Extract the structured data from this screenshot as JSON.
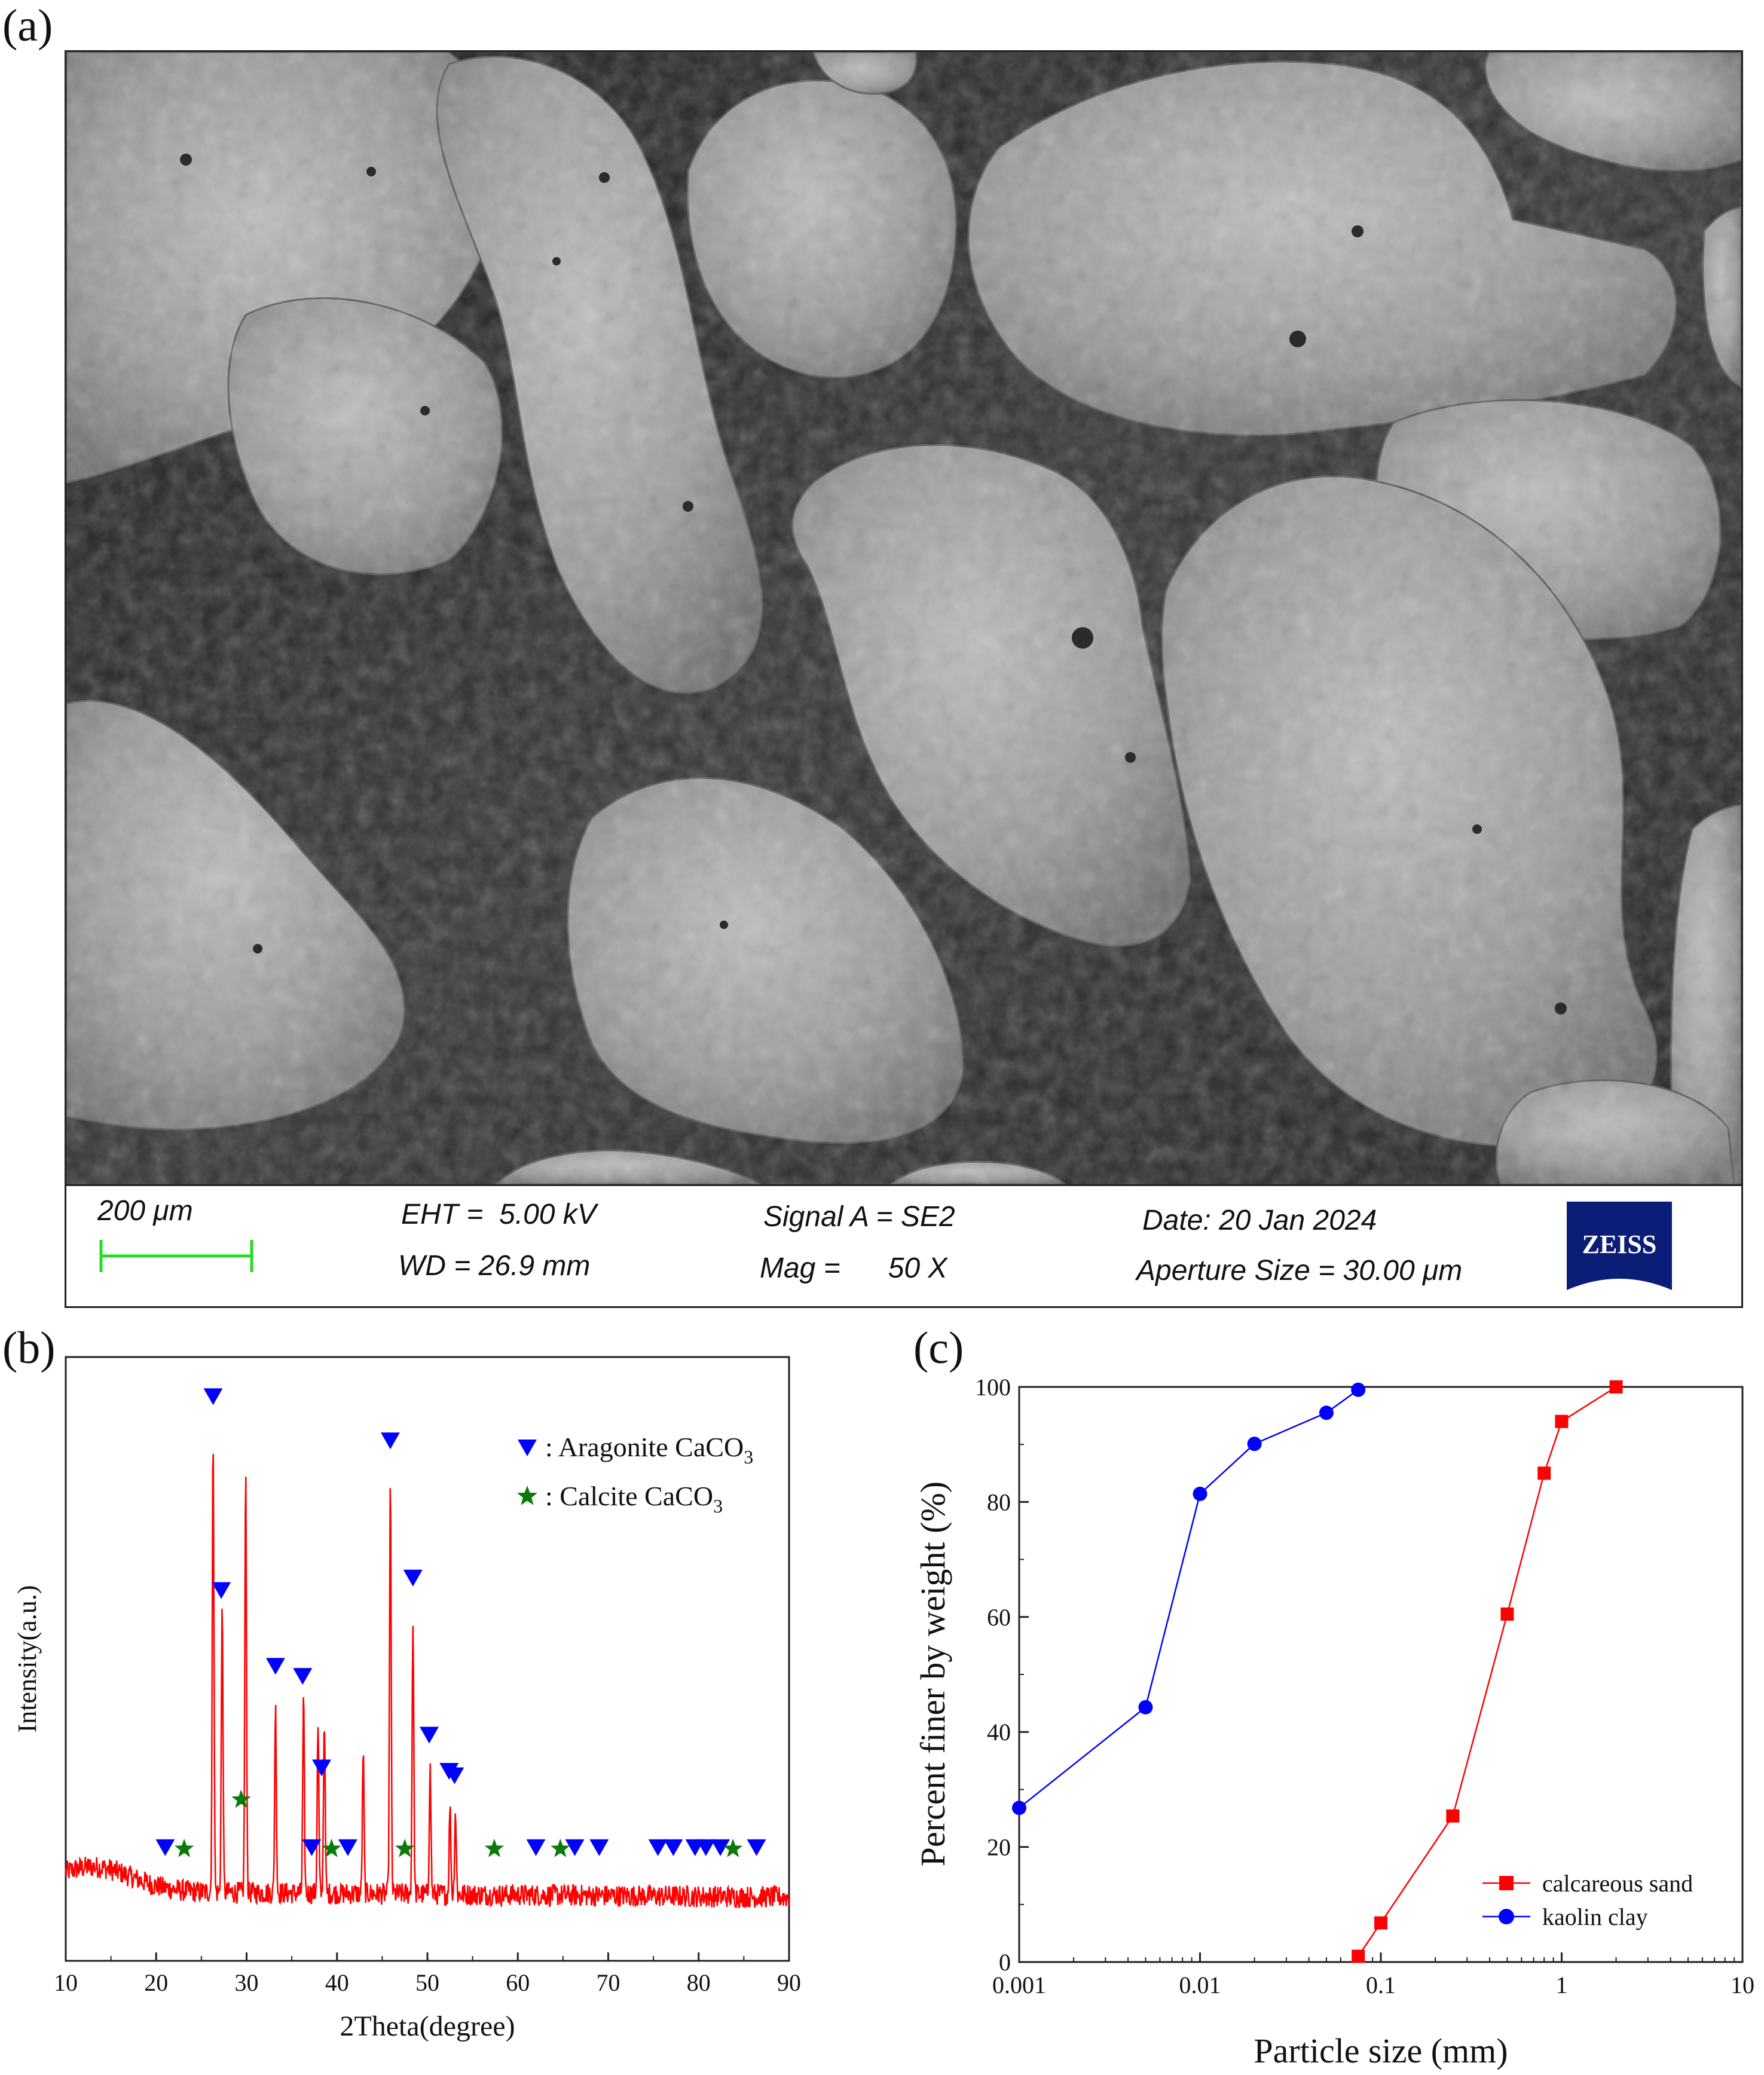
{
  "panels": {
    "a": "(a)",
    "b": "(b)",
    "c": "(c)"
  },
  "sem_info": {
    "scale_label": "200 μm",
    "eht": "EHT =  5.00 kV",
    "wd": "WD = 26.9 mm",
    "signal": "Signal A = SE2",
    "mag": "Mag =      50 X",
    "date": "Date: 20 Jan 2024",
    "aperture": "Aperture Size = 30.00 μm",
    "logo": "ZEISS"
  },
  "colors": {
    "xrd_line": "#ff0000",
    "aragonite": "#0000ff",
    "calcite": "#0a7a0a",
    "sand": "#ff0000",
    "clay": "#0000ff",
    "scale_bar": "#22dd22",
    "zeiss_blue": "#0a1e78"
  },
  "chart_data": [
    {
      "type": "line",
      "title": "",
      "xlabel": "2Theta(degree)",
      "ylabel": "Intensity(a.u.)",
      "xlim": [
        10,
        90
      ],
      "xticks": [
        10,
        20,
        30,
        40,
        50,
        60,
        70,
        80,
        90
      ],
      "legend": {
        "placement": "top-right",
        "entries": [
          {
            "marker": "triangle-down",
            "prefix": ": Aragonite CaCO",
            "sub": "3"
          },
          {
            "marker": "star",
            "prefix": ": Calcite CaCO",
            "sub": "3"
          }
        ]
      },
      "peaks": [
        {
          "x": 26.3,
          "h": 0.93
        },
        {
          "x": 27.3,
          "h": 0.58
        },
        {
          "x": 29.9,
          "h": 0.85
        },
        {
          "x": 33.2,
          "h": 0.38
        },
        {
          "x": 36.3,
          "h": 0.39
        },
        {
          "x": 37.9,
          "h": 0.34
        },
        {
          "x": 38.6,
          "h": 0.36
        },
        {
          "x": 42.9,
          "h": 0.29
        },
        {
          "x": 45.9,
          "h": 0.84
        },
        {
          "x": 48.4,
          "h": 0.56
        },
        {
          "x": 50.3,
          "h": 0.26
        },
        {
          "x": 52.5,
          "h": 0.18
        },
        {
          "x": 53.1,
          "h": 0.17
        }
      ],
      "aragonite_markers": [
        21.0,
        26.3,
        27.2,
        33.2,
        36.2,
        37.2,
        38.3,
        41.2,
        45.9,
        48.4,
        50.2,
        52.4,
        53.0,
        62.0,
        66.3,
        69.0,
        75.5,
        77.2,
        79.6,
        80.8,
        82.4,
        86.4
      ],
      "calcite_markers": [
        23.1,
        29.4,
        39.4,
        47.5,
        57.4,
        64.7,
        83.8
      ]
    },
    {
      "type": "line",
      "title": "",
      "xlabel": "Particle size (mm)",
      "ylabel": "Percent finer by weight (%)",
      "xscale": "log",
      "xlim": [
        0.001,
        10
      ],
      "ylim": [
        0,
        100
      ],
      "xticks": [
        "0.001",
        "0.01",
        "0.1",
        "1",
        "10"
      ],
      "yticks": [
        0,
        20,
        40,
        60,
        80,
        100
      ],
      "legend": "bottom-right",
      "series": [
        {
          "name": "calcareous sand",
          "marker": "square",
          "x": [
            0.075,
            0.1,
            0.25,
            0.5,
            0.8,
            1.0,
            2.0
          ],
          "y": [
            1.0,
            6.8,
            25.4,
            60.5,
            85.0,
            94.0,
            100.0
          ]
        },
        {
          "name": "kaolin clay",
          "marker": "circle",
          "x": [
            0.001,
            0.005,
            0.01,
            0.02,
            0.05,
            0.075
          ],
          "y": [
            26.8,
            44.3,
            81.4,
            90.1,
            95.5,
            99.5
          ]
        }
      ]
    }
  ]
}
